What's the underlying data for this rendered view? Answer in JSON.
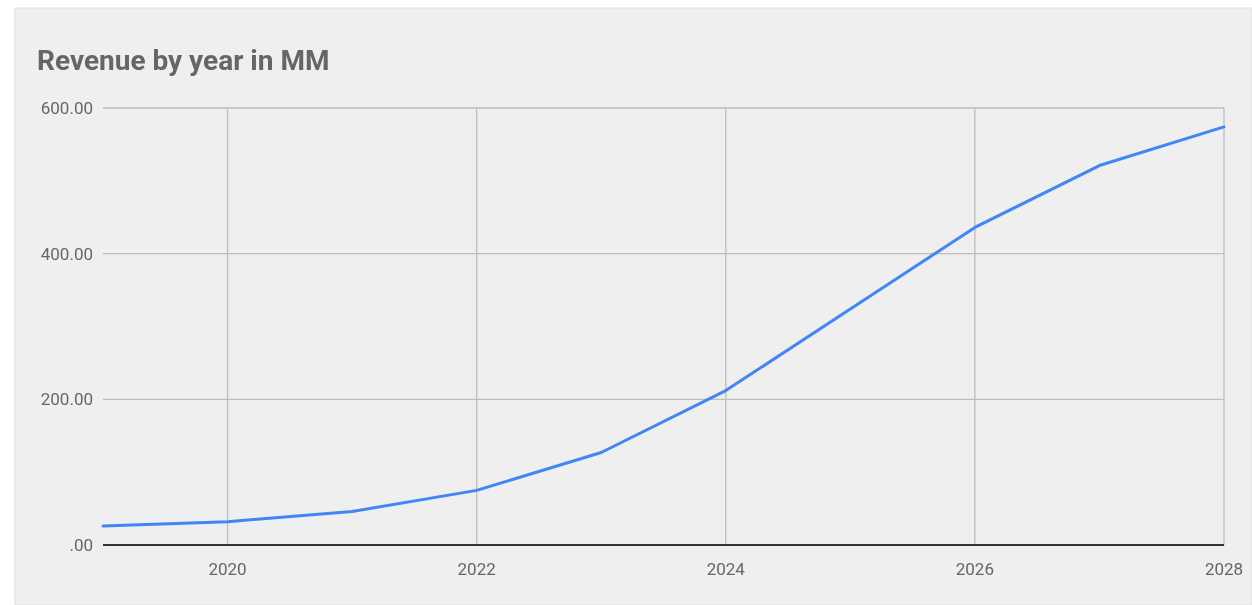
{
  "chart_data": {
    "type": "line",
    "title": "Revenue by year in MM",
    "x": [
      2019,
      2020,
      2021,
      2022,
      2023,
      2024,
      2025,
      2026,
      2027,
      2028
    ],
    "series": [
      {
        "color": "#4285f4",
        "values": [
          26,
          32,
          46,
          75,
          127,
          212,
          324,
          436,
          521,
          574
        ]
      }
    ],
    "xlim": [
      2019,
      2028
    ],
    "xticks": [
      2020,
      2022,
      2024,
      2026,
      2028
    ],
    "ylim": [
      0,
      600
    ],
    "yticks": [
      {
        "value": 0,
        "label": ".00"
      },
      {
        "value": 200,
        "label": "200.00"
      },
      {
        "value": 400,
        "label": "400.00"
      },
      {
        "value": 600,
        "label": "600.00"
      }
    ],
    "grid": true
  }
}
